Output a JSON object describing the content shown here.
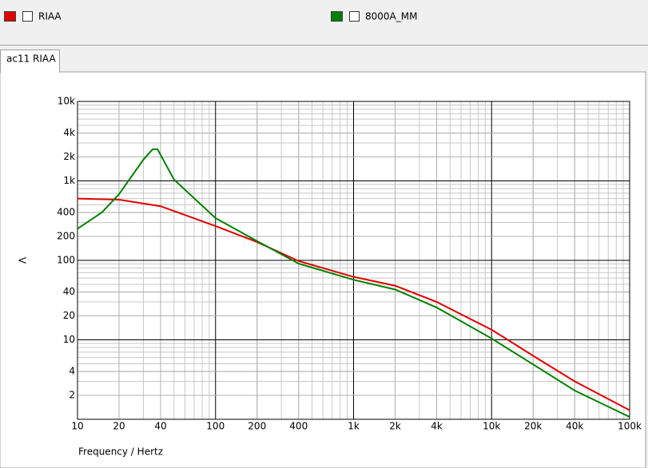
{
  "tab": "ac11 RIAA",
  "chart_data": {
    "type": "line",
    "xlabel": "Frequency / Hertz",
    "ylabel": "V",
    "xscale": "log",
    "yscale": "log",
    "grid": true,
    "minor_grid": true,
    "xlim": [
      10,
      100000
    ],
    "ylim": [
      1,
      10000
    ],
    "xticks": [
      10,
      20,
      40,
      100,
      200,
      400,
      {
        "value": 1000,
        "label": "1k"
      },
      {
        "value": 2000,
        "label": "2k"
      },
      {
        "value": 4000,
        "label": "4k"
      },
      {
        "value": 10000,
        "label": "10k"
      },
      {
        "value": 20000,
        "label": "20k"
      },
      {
        "value": 40000,
        "label": "40k"
      },
      {
        "value": 100000,
        "label": "100k"
      }
    ],
    "yticks": [
      2,
      4,
      10,
      20,
      40,
      100,
      200,
      400,
      {
        "value": 1000,
        "label": "1k"
      },
      {
        "value": 2000,
        "label": "2k"
      },
      {
        "value": 4000,
        "label": "4k"
      },
      {
        "value": 10000,
        "label": "10k"
      }
    ],
    "series": [
      {
        "name": "RIAA",
        "color": "#e00000",
        "x": [
          10,
          20,
          40,
          100,
          200,
          400,
          1000,
          2000,
          4000,
          10000,
          20000,
          40000,
          100000
        ],
        "values": [
          600,
          580,
          480,
          270,
          170,
          98,
          62,
          48,
          30,
          13.4,
          6.3,
          3,
          1.3
        ]
      },
      {
        "name": "8000A_MM",
        "color": "#008000",
        "x": [
          10,
          15,
          20,
          30,
          35,
          38,
          50,
          100,
          200,
          400,
          1000,
          2000,
          4000,
          10000,
          20000,
          40000,
          100000
        ],
        "values": [
          250,
          400,
          680,
          1850,
          2500,
          2500,
          1040,
          340,
          175,
          91,
          57,
          43,
          25.5,
          10.4,
          4.9,
          2.3,
          1.07
        ]
      }
    ]
  }
}
